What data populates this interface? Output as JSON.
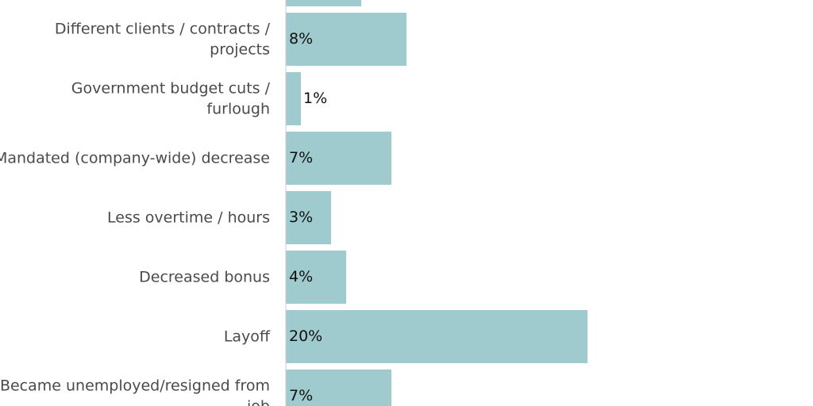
{
  "chart_data": {
    "type": "bar",
    "orientation": "horizontal",
    "categories": [
      "",
      "Different clients / contracts / projects",
      "Government budget cuts / furlough",
      "Mandated (company-wide) decrease",
      "Less overtime / hours",
      "Decreased bonus",
      "Layoff",
      "Became unemployed/resigned from job"
    ],
    "values": [
      5,
      8,
      1,
      7,
      3,
      4,
      20,
      7
    ],
    "value_labels": [
      "",
      "8%",
      "1%",
      "7%",
      "3%",
      "4%",
      "20%",
      "7%"
    ],
    "unit": "%",
    "bar_color": "#9fcace",
    "axis_color": "#cccccc",
    "grid": false,
    "legend": "none"
  }
}
